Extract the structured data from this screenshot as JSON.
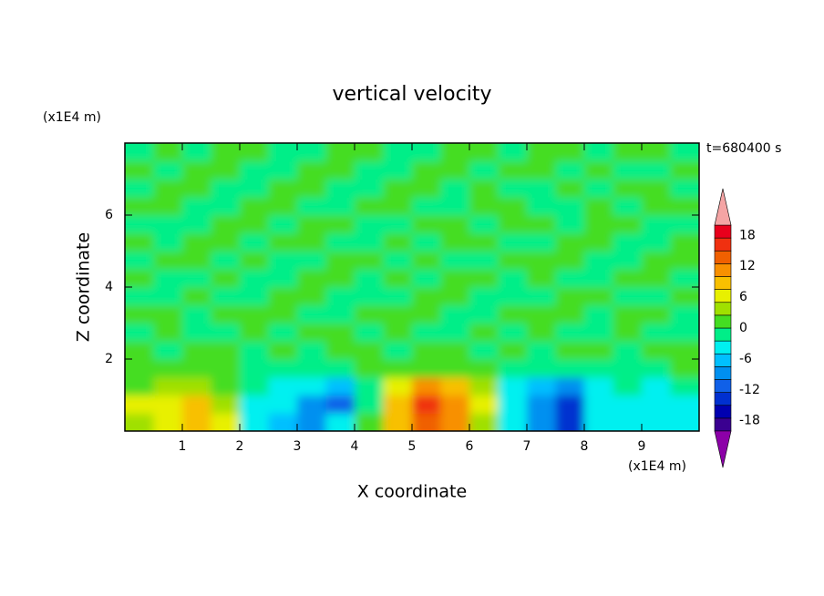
{
  "chart_data": {
    "type": "contour",
    "title": "vertical velocity",
    "xlabel": "X coordinate",
    "ylabel": "Z coordinate",
    "x_unit_label": "(x1E4 m)",
    "y_unit_label": "(x1E4 m)",
    "annotation": "t=680400 s",
    "xlim": [
      0,
      10
    ],
    "ylim": [
      0,
      8
    ],
    "xticks": [
      1,
      2,
      3,
      4,
      5,
      6,
      7,
      8,
      9
    ],
    "yticks": [
      2,
      4,
      6
    ],
    "x": [
      0.25,
      0.75,
      1.25,
      1.75,
      2.25,
      2.75,
      3.25,
      3.75,
      4.25,
      4.75,
      5.25,
      5.75,
      6.25,
      6.75,
      7.25,
      7.75,
      8.25,
      8.75,
      9.25,
      9.75
    ],
    "y": [
      0.25,
      0.75,
      1.25,
      1.75,
      2.25,
      2.75,
      3.25,
      3.75,
      4.25,
      4.75,
      5.25,
      5.75,
      6.25,
      6.75,
      7.25,
      7.75
    ],
    "z": [
      [
        4,
        6,
        8,
        5,
        -3,
        -6,
        -10,
        -4,
        1,
        8,
        14,
        10,
        4,
        -3,
        -8,
        -13,
        -4,
        -3,
        -4,
        -3
      ],
      [
        5,
        6,
        8,
        4,
        -3,
        -5,
        -9,
        -11,
        -2,
        9,
        15,
        11,
        5,
        -3,
        -9,
        -14,
        -4,
        -4,
        -5,
        -3
      ],
      [
        2,
        3,
        4,
        2,
        -2,
        -3,
        -5,
        -6,
        -1,
        6,
        10,
        8,
        3,
        -3,
        -6,
        -8,
        -3,
        -2,
        -3,
        -1
      ],
      [
        1,
        1,
        1,
        0,
        -1,
        -1,
        -2,
        -1,
        0,
        1,
        2,
        1,
        1,
        -1,
        -2,
        -1,
        -1,
        -1,
        -1,
        0
      ],
      [
        1,
        -1,
        1,
        1,
        -1,
        1,
        -1,
        1,
        1,
        -1,
        1,
        1,
        -1,
        1,
        -1,
        1,
        1,
        -1,
        1,
        1
      ],
      [
        -1,
        1,
        -1,
        -1,
        1,
        -1,
        1,
        1,
        -1,
        1,
        -1,
        -1,
        1,
        -1,
        1,
        -1,
        -1,
        1,
        -1,
        -1
      ],
      [
        1,
        1,
        -1,
        1,
        1,
        1,
        -1,
        -1,
        1,
        1,
        1,
        -1,
        -1,
        1,
        1,
        1,
        -1,
        1,
        1,
        -1
      ],
      [
        -1,
        -1,
        1,
        -1,
        -1,
        1,
        1,
        -1,
        -1,
        -1,
        1,
        1,
        -1,
        -1,
        -1,
        1,
        1,
        -1,
        -1,
        1
      ],
      [
        1,
        -1,
        -1,
        1,
        -1,
        -1,
        1,
        1,
        -1,
        1,
        -1,
        1,
        1,
        -1,
        1,
        -1,
        -1,
        1,
        1,
        -1
      ],
      [
        -1,
        1,
        1,
        -1,
        1,
        -1,
        -1,
        1,
        1,
        -1,
        1,
        -1,
        -1,
        1,
        1,
        1,
        -1,
        -1,
        1,
        1
      ],
      [
        1,
        -1,
        1,
        1,
        -1,
        1,
        1,
        -1,
        -1,
        1,
        -1,
        1,
        1,
        -1,
        -1,
        1,
        1,
        -1,
        -1,
        1
      ],
      [
        -1,
        -1,
        -1,
        1,
        1,
        -1,
        1,
        1,
        -1,
        -1,
        1,
        1,
        -1,
        1,
        1,
        -1,
        1,
        1,
        -1,
        -1
      ],
      [
        1,
        1,
        -1,
        -1,
        1,
        1,
        -1,
        -1,
        1,
        1,
        -1,
        -1,
        1,
        1,
        -1,
        -1,
        1,
        -1,
        1,
        1
      ],
      [
        -1,
        1,
        1,
        -1,
        -1,
        1,
        1,
        -1,
        -1,
        1,
        1,
        -1,
        1,
        -1,
        -1,
        1,
        -1,
        1,
        1,
        -1
      ],
      [
        1,
        -1,
        1,
        1,
        -1,
        -1,
        1,
        1,
        -1,
        -1,
        1,
        1,
        -1,
        1,
        1,
        -1,
        1,
        -1,
        -1,
        1
      ],
      [
        -1,
        1,
        -1,
        1,
        1,
        -1,
        -1,
        1,
        1,
        -1,
        -1,
        1,
        1,
        -1,
        1,
        1,
        -1,
        1,
        1,
        -1
      ]
    ],
    "levels": [
      -20,
      -17.5,
      -15,
      -12.5,
      -10,
      -7.5,
      -5,
      -2.5,
      0,
      2.5,
      5,
      7.5,
      10,
      12.5,
      15,
      17.5,
      20
    ],
    "colors": [
      "#3a0090",
      "#0000b0",
      "#0030d0",
      "#1060e8",
      "#0090f0",
      "#00c0ff",
      "#00f0f0",
      "#00ee88",
      "#44dd22",
      "#a0e000",
      "#e8f000",
      "#f8c000",
      "#f89000",
      "#f06000",
      "#f03010",
      "#e8001c"
    ],
    "under_color": "#8c00a8",
    "over_color": "#f4a4a4",
    "colorbar_ticks": [
      18,
      12,
      6,
      0,
      -6,
      -12,
      -18
    ]
  }
}
